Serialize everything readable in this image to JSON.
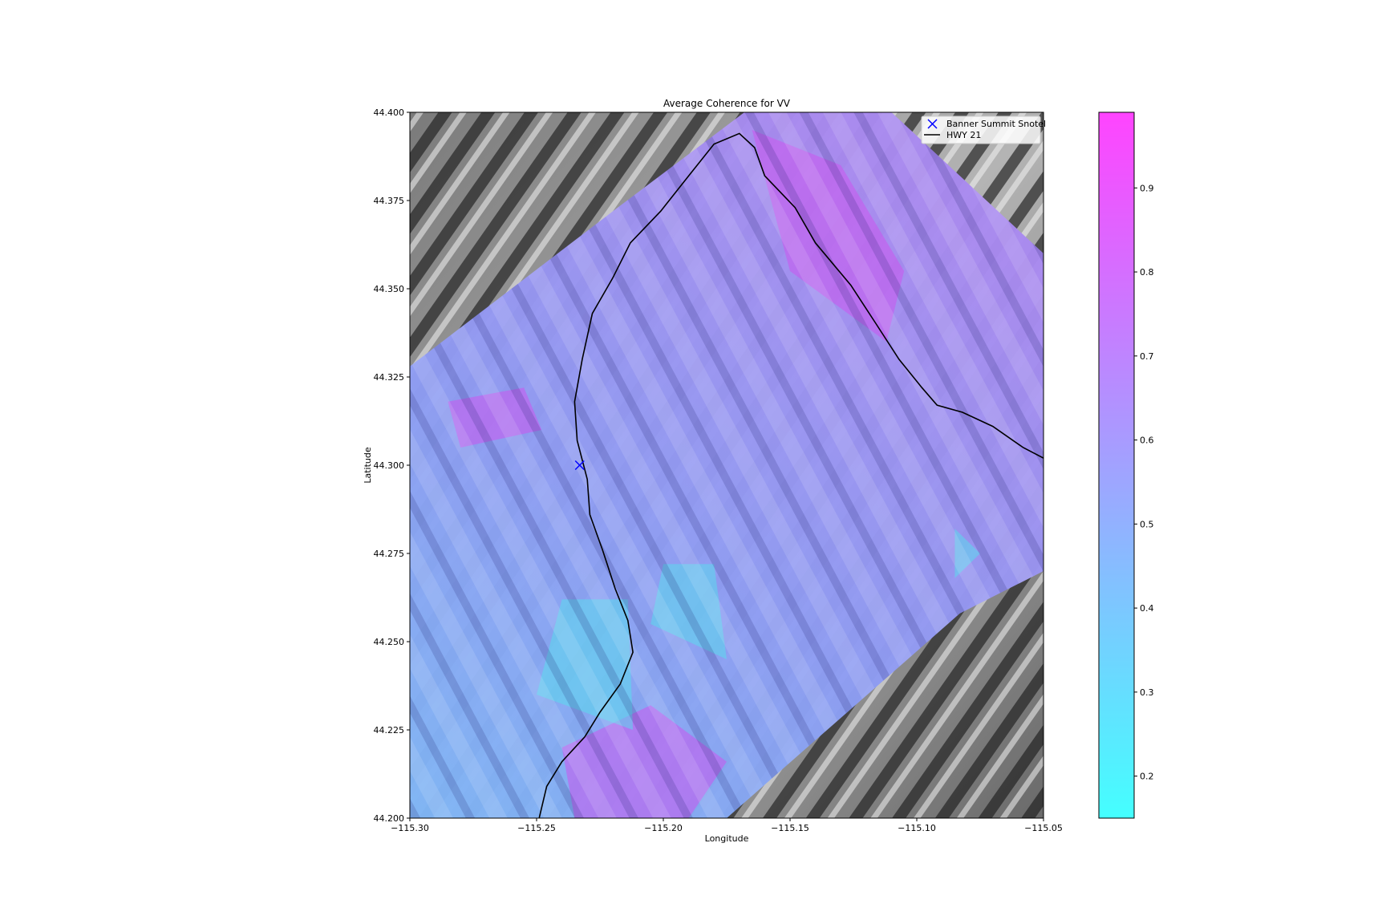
{
  "map": {
    "title": "Average Coherence for VV",
    "xlabel": "Longitude",
    "ylabel": "Latitude",
    "xlim": [
      -115.3,
      -115.05
    ],
    "ylim": [
      44.2,
      44.4
    ],
    "xticks": [
      -115.3,
      -115.25,
      -115.2,
      -115.15,
      -115.1,
      -115.05
    ],
    "xtick_labels": [
      "−115.30",
      "−115.25",
      "−115.20",
      "−115.15",
      "−115.10",
      "−115.05"
    ],
    "yticks": [
      44.2,
      44.225,
      44.25,
      44.275,
      44.3,
      44.325,
      44.35,
      44.375,
      44.4
    ],
    "ytick_labels": [
      "44.200",
      "44.225",
      "44.250",
      "44.275",
      "44.300",
      "44.325",
      "44.350",
      "44.375",
      "44.400"
    ],
    "coherence_footprint": [
      [
        -115.3,
        44.328
      ],
      [
        -115.218,
        44.373
      ],
      [
        -115.168,
        44.4
      ],
      [
        -115.11,
        44.4
      ],
      [
        -115.05,
        44.36
      ],
      [
        -115.05,
        44.27
      ],
      [
        -115.083,
        44.258
      ],
      [
        -115.175,
        44.2
      ],
      [
        -115.3,
        44.2
      ]
    ],
    "high_coherence_zones": [
      [
        [
          -115.165,
          44.395
        ],
        [
          -115.13,
          44.385
        ],
        [
          -115.105,
          44.355
        ],
        [
          -115.112,
          44.335
        ],
        [
          -115.15,
          44.355
        ]
      ],
      [
        [
          -115.24,
          44.22
        ],
        [
          -115.205,
          44.232
        ],
        [
          -115.175,
          44.216
        ],
        [
          -115.19,
          44.2
        ],
        [
          -115.235,
          44.2
        ]
      ],
      [
        [
          -115.285,
          44.318
        ],
        [
          -115.255,
          44.322
        ],
        [
          -115.248,
          44.31
        ],
        [
          -115.28,
          44.305
        ]
      ]
    ],
    "low_coherence_zones": [
      [
        [
          -115.24,
          44.262
        ],
        [
          -115.214,
          44.262
        ],
        [
          -115.212,
          44.225
        ],
        [
          -115.25,
          44.235
        ]
      ],
      [
        [
          -115.2,
          44.272
        ],
        [
          -115.18,
          44.272
        ],
        [
          -115.175,
          44.245
        ],
        [
          -115.205,
          44.255
        ]
      ],
      [
        [
          -115.085,
          44.282
        ],
        [
          -115.075,
          44.275
        ],
        [
          -115.085,
          44.268
        ]
      ]
    ],
    "highway": {
      "name": "HWY 21",
      "color": "#000000",
      "points": [
        [
          -115.249,
          44.2
        ],
        [
          -115.246,
          44.209
        ],
        [
          -115.24,
          44.216
        ],
        [
          -115.231,
          44.223
        ],
        [
          -115.225,
          44.23
        ],
        [
          -115.217,
          44.238
        ],
        [
          -115.212,
          44.247
        ],
        [
          -115.214,
          44.256
        ],
        [
          -115.219,
          44.265
        ],
        [
          -115.224,
          44.276
        ],
        [
          -115.229,
          44.286
        ],
        [
          -115.23,
          44.296
        ],
        [
          -115.234,
          44.307
        ],
        [
          -115.235,
          44.318
        ],
        [
          -115.232,
          44.33
        ],
        [
          -115.228,
          44.343
        ],
        [
          -115.22,
          44.353
        ],
        [
          -115.213,
          44.363
        ],
        [
          -115.201,
          44.372
        ],
        [
          -115.19,
          44.382
        ],
        [
          -115.18,
          44.391
        ],
        [
          -115.17,
          44.394
        ],
        [
          -115.164,
          44.39
        ],
        [
          -115.16,
          44.382
        ],
        [
          -115.148,
          44.373
        ],
        [
          -115.14,
          44.363
        ],
        [
          -115.126,
          44.351
        ],
        [
          -115.116,
          44.34
        ],
        [
          -115.107,
          44.33
        ],
        [
          -115.098,
          44.322
        ],
        [
          -115.092,
          44.317
        ],
        [
          -115.082,
          44.315
        ],
        [
          -115.07,
          44.311
        ],
        [
          -115.058,
          44.305
        ],
        [
          -115.05,
          44.302
        ]
      ]
    },
    "snotel": {
      "name": "Banner Summit Snotel",
      "lon": -115.233,
      "lat": 44.3,
      "color": "#0000ff",
      "marker": "x-icon"
    },
    "legend": {
      "placement": "top-right",
      "entries": [
        {
          "label": "Banner Summit Snotel",
          "marker": "x-icon",
          "color": "#0000ff"
        },
        {
          "label": "HWY 21",
          "marker": "line-icon",
          "color": "#000000"
        }
      ]
    },
    "colorbar": {
      "colormap": "cool",
      "range": [
        0.15,
        0.99
      ],
      "ticks": [
        0.2,
        0.3,
        0.4,
        0.5,
        0.6,
        0.7,
        0.8,
        0.9
      ],
      "tick_labels": [
        "0.2",
        "0.3",
        "0.4",
        "0.5",
        "0.6",
        "0.7",
        "0.8",
        "0.9"
      ],
      "color_low": "#44ffff",
      "color_high": "#ff44ff"
    }
  }
}
